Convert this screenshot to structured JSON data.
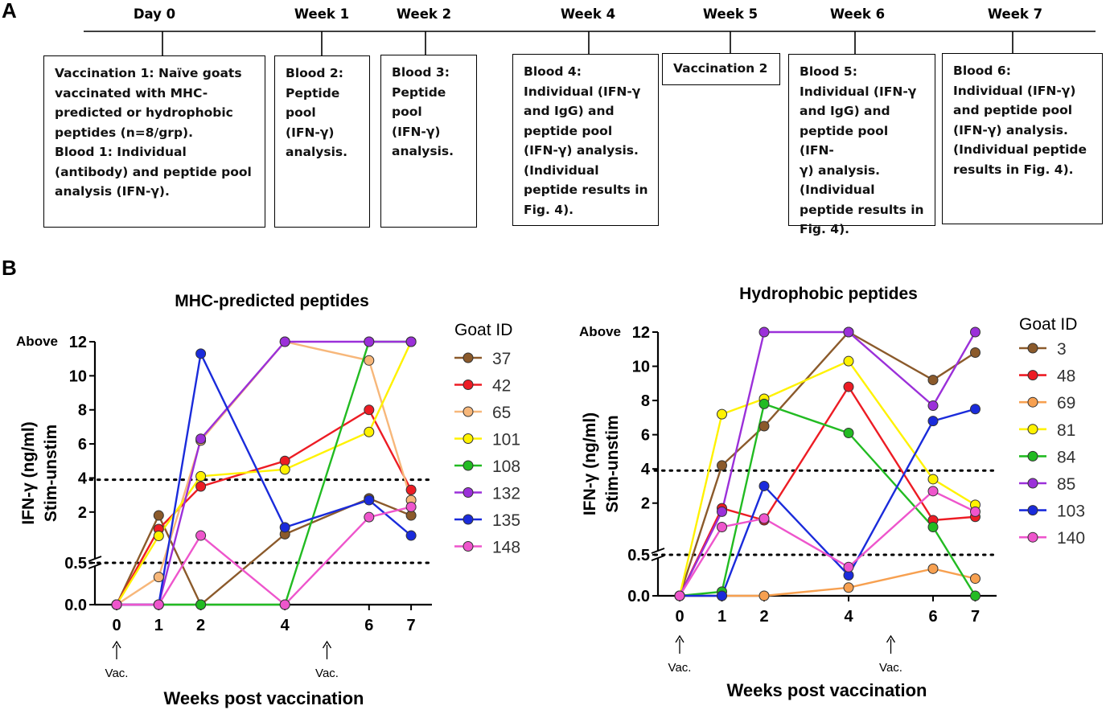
{
  "panel_a": {
    "label": "A",
    "timepoints": [
      "Day 0",
      "Week 1",
      "Week 2",
      "Week 4",
      "Week 5",
      "Week 6",
      "Week 7"
    ],
    "boxes": [
      "Vaccination 1: Naïve goats\nvaccinated with MHC-\npredicted or hydrophobic\npeptides (n=8/grp).\nBlood 1: Individual\n(antibody) and peptide pool\nanalysis (IFN-γ).",
      "Blood 2:\nPeptide\npool\n(IFN-γ)\nanalysis.",
      "Blood 3:\nPeptide\npool\n(IFN-γ)\nanalysis.",
      "Blood 4:\nIndividual (IFN-γ\nand IgG) and\npeptide pool\n(IFN-γ) analysis.\n(Individual\npeptide results in\nFig. 4).",
      "Vaccination 2",
      "Blood 5:\nIndividual (IFN-γ\nand IgG) and\npeptide pool (IFN-\nγ) analysis.\n(Individual\npeptide results in\nFig. 4).",
      "Blood 6:\nIndividual (IFN-γ)\nand peptide pool\n(IFN-γ) analysis.\n(Individual peptide\nresults in Fig. 4)."
    ]
  },
  "panel_b": {
    "label": "B"
  },
  "chart_data": [
    {
      "type": "line",
      "title": "MHC-predicted peptides",
      "xlabel": "Weeks post vaccination",
      "ylabel_line1": "IFN-γ (ng/ml)",
      "ylabel_line2": "Stim-unstim",
      "above_label": "Above",
      "x_ticks": [
        0,
        1,
        2,
        4,
        6,
        7
      ],
      "y_ticks_upper": [
        "2",
        "4",
        "6",
        "8",
        "10",
        "12"
      ],
      "y_ticks_lower": [
        "0.0",
        "0.5"
      ],
      "ylim_lower": [
        0,
        0.5
      ],
      "ylim_upper": [
        0.5,
        12
      ],
      "thresholds": [
        0.5,
        3.9
      ],
      "vac_label": "Vac.",
      "vac_weeks": [
        0,
        5
      ],
      "legend_title": "Goat ID",
      "series": [
        {
          "name": "37",
          "color": "#8B5A2B",
          "x": [
            0,
            1,
            2,
            4,
            6,
            7
          ],
          "y": [
            0,
            1.8,
            0,
            0.7,
            2.8,
            1.8
          ]
        },
        {
          "name": "42",
          "color": "#ED1C24",
          "x": [
            0,
            1,
            2,
            4,
            6,
            7
          ],
          "y": [
            0,
            1,
            3.5,
            5,
            8,
            3.3
          ]
        },
        {
          "name": "65",
          "color": "#F7B77A",
          "x": [
            0,
            1,
            2,
            4,
            6,
            7
          ],
          "y": [
            0,
            0.33,
            6.2,
            12,
            10.9,
            2.7
          ]
        },
        {
          "name": "101",
          "color": "#FFF200",
          "x": [
            0,
            1,
            2,
            4,
            6,
            7
          ],
          "y": [
            0,
            0.6,
            4.1,
            4.5,
            6.7,
            12
          ]
        },
        {
          "name": "108",
          "color": "#22BB22",
          "x": [
            0,
            1,
            2,
            4,
            6,
            7
          ],
          "y": [
            0,
            0,
            0,
            0,
            12,
            12
          ]
        },
        {
          "name": "132",
          "color": "#9B30D9",
          "x": [
            0,
            1,
            2,
            4,
            6,
            7
          ],
          "y": [
            0,
            0,
            6.3,
            12,
            12,
            12
          ]
        },
        {
          "name": "135",
          "color": "#1A2BDB",
          "x": [
            0,
            1,
            2,
            4,
            6,
            7
          ],
          "y": [
            0,
            0,
            11.3,
            1.1,
            2.7,
            0.62
          ]
        },
        {
          "name": "148",
          "color": "#EE55CC",
          "x": [
            0,
            1,
            2,
            4,
            6,
            7
          ],
          "y": [
            0,
            0,
            0.62,
            0,
            1.7,
            2.3
          ]
        }
      ]
    },
    {
      "type": "line",
      "title": "Hydrophobic peptides",
      "xlabel": "Weeks post vaccination",
      "ylabel_line1": "IFN-γ (ng/ml)",
      "ylabel_line2": "Stim-unstim",
      "above_label": "Above",
      "x_ticks": [
        0,
        1,
        2,
        4,
        6,
        7
      ],
      "y_ticks_upper": [
        "2",
        "4",
        "6",
        "8",
        "10",
        "12"
      ],
      "y_ticks_lower": [
        "0.0",
        "0.5"
      ],
      "ylim_lower": [
        0,
        0.5
      ],
      "ylim_upper": [
        0.5,
        12
      ],
      "thresholds": [
        0.5,
        3.9
      ],
      "vac_label": "Vac.",
      "vac_weeks": [
        0,
        5
      ],
      "legend_title": "Goat ID",
      "series": [
        {
          "name": "3",
          "color": "#8B5A2B",
          "x": [
            0,
            1,
            2,
            4,
            6,
            7
          ],
          "y": [
            0,
            4.2,
            6.5,
            12,
            9.2,
            10.8
          ]
        },
        {
          "name": "48",
          "color": "#ED1C24",
          "x": [
            0,
            1,
            2,
            4,
            6,
            7
          ],
          "y": [
            0,
            1.7,
            1,
            8.8,
            1,
            1.2
          ]
        },
        {
          "name": "69",
          "color": "#F7A050",
          "x": [
            0,
            1,
            2,
            4,
            6,
            7
          ],
          "y": [
            0,
            0,
            0,
            0.1,
            0.33,
            0.21
          ]
        },
        {
          "name": "81",
          "color": "#FFF200",
          "x": [
            0,
            1,
            2,
            4,
            6,
            7
          ],
          "y": [
            0,
            7.2,
            8.1,
            10.3,
            3.4,
            1.9
          ]
        },
        {
          "name": "84",
          "color": "#22BB22",
          "x": [
            0,
            1,
            2,
            4,
            6,
            7
          ],
          "y": [
            0,
            0.05,
            7.8,
            6.1,
            0.6,
            0
          ]
        },
        {
          "name": "85",
          "color": "#9B30D9",
          "x": [
            0,
            1,
            2,
            4,
            6,
            7
          ],
          "y": [
            0,
            1.5,
            12,
            12,
            7.7,
            12
          ]
        },
        {
          "name": "103",
          "color": "#1A2BDB",
          "x": [
            0,
            1,
            2,
            4,
            6,
            7
          ],
          "y": [
            0,
            0,
            3,
            0.25,
            6.8,
            7.5
          ]
        },
        {
          "name": "140",
          "color": "#EE55CC",
          "x": [
            0,
            1,
            2,
            4,
            6,
            7
          ],
          "y": [
            0,
            0.6,
            1.1,
            0.35,
            2.7,
            1.5
          ]
        }
      ]
    }
  ]
}
